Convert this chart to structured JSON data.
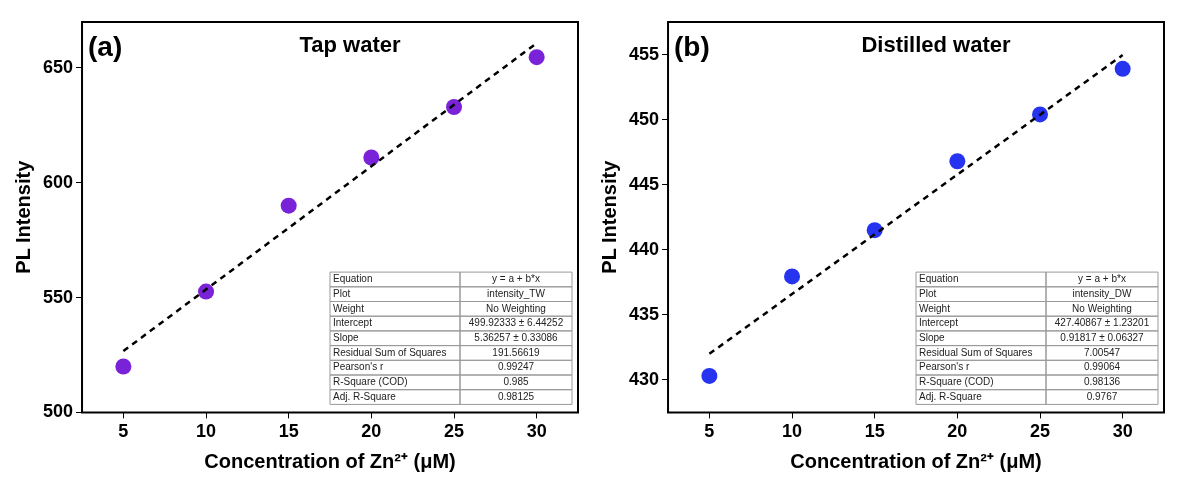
{
  "chart_data": [
    {
      "type": "scatter",
      "title": "Tap water",
      "xlabel": "Concentration of Zn²⁺ (μM)",
      "ylabel": "PL Intensity",
      "xlim": [
        2.5,
        32.5
      ],
      "xticks": [
        5,
        10,
        15,
        20,
        25,
        30
      ],
      "ylim": [
        500,
        670
      ],
      "yticks": [
        500,
        550,
        600,
        650
      ],
      "grid": false,
      "legend": false,
      "marker": "circle",
      "series": [
        {
          "type": "scatter",
          "color": "#7a22d8",
          "x": [
            5,
            10,
            15,
            20,
            25,
            30
          ],
          "values": [
            520,
            552.6,
            590,
            611,
            633,
            654.7
          ]
        },
        {
          "type": "line",
          "color": "#000000",
          "line_style": "dashed",
          "marker": "none",
          "x": [
            5,
            30
          ],
          "values": [
            526.7,
            660.8
          ]
        }
      ],
      "annotations": [
        "(a)",
        "Equation",
        "y = a + b*x",
        "Plot",
        "intensity_TW",
        "Weight",
        "No Weighting",
        "Intercept",
        "499.92333 ± 6.44252",
        "Slope",
        "5.36257 ± 0.33086",
        "Residual Sum of Squares",
        "191.56619",
        "Pearson's r",
        "0.99247",
        "R-Square (COD)",
        "0.985",
        "Adj. R-Square",
        "0.98125"
      ]
    },
    {
      "type": "scatter",
      "title": "Distilled water",
      "xlabel": "Concentration of Zn²⁺ (μM)",
      "ylabel": "PL Intensity",
      "xlim": [
        2.5,
        32.5
      ],
      "xticks": [
        5,
        10,
        15,
        20,
        25,
        30
      ],
      "ylim": [
        427.5,
        457.5
      ],
      "yticks": [
        430,
        435,
        440,
        445,
        450,
        455
      ],
      "grid": false,
      "legend": false,
      "marker": "circle",
      "series": [
        {
          "type": "scatter",
          "color": "#2634f0",
          "x": [
            5,
            10,
            15,
            20,
            25,
            30
          ],
          "values": [
            430.3,
            437.95,
            441.5,
            446.8,
            450.4,
            453.9
          ]
        },
        {
          "type": "line",
          "color": "#000000",
          "line_style": "dashed",
          "marker": "none",
          "x": [
            5,
            30
          ],
          "values": [
            432.0,
            454.96
          ]
        }
      ],
      "annotations": [
        "(b)",
        "Equation",
        "y = a + b*x",
        "Plot",
        "intensity_DW",
        "Weight",
        "No Weighting",
        "Intercept",
        "427.40867 ± 1.23201",
        "Slope",
        "0.91817 ± 0.06327",
        "Residual Sum of Squares",
        "7.00547",
        "Pearson's r",
        "0.99064",
        "R-Square (COD)",
        "0.98136",
        "Adj. R-Square",
        "0.9767"
      ]
    }
  ]
}
